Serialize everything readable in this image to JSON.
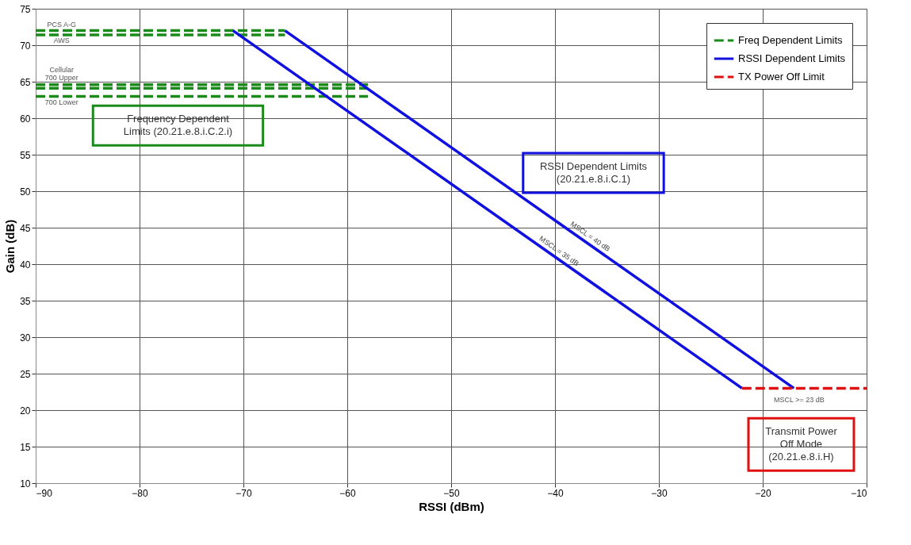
{
  "chart_data": {
    "type": "line",
    "xlabel": "RSSI (dBm)",
    "ylabel": "Gain (dB)",
    "xlim": [
      -90,
      -10
    ],
    "xticks": [
      -90,
      -80,
      -70,
      -60,
      -50,
      -40,
      -30,
      -20,
      -10
    ],
    "ylim": [
      10,
      75
    ],
    "yticks": [
      10,
      15,
      20,
      25,
      30,
      35,
      40,
      45,
      50,
      55,
      60,
      65,
      70,
      75
    ],
    "grid": true,
    "legend": "top right",
    "series": [
      {
        "name": "Freq Dependent Limits",
        "color": "#1a8a1a",
        "line_style": "dashed",
        "x": [
          -90,
          -66
        ],
        "values": [
          72.0,
          72.0
        ]
      },
      {
        "color": "#1a8a1a",
        "line_style": "dashed",
        "x": [
          -90,
          -66
        ],
        "values": [
          71.4,
          71.4
        ]
      },
      {
        "color": "#1a8a1a",
        "line_style": "dashed",
        "x": [
          -90,
          -58
        ],
        "values": [
          64.6,
          64.6
        ]
      },
      {
        "color": "#1a8a1a",
        "line_style": "dashed",
        "x": [
          -90,
          -58
        ],
        "values": [
          64.1,
          64.1
        ]
      },
      {
        "color": "#1a8a1a",
        "line_style": "dashed",
        "x": [
          -90,
          -58
        ],
        "values": [
          63.0,
          63.0
        ]
      },
      {
        "name": "RSSI Dependent Limits",
        "color": "#1010e0",
        "line_style": "solid",
        "x": [
          -66,
          -17
        ],
        "values": [
          72,
          23
        ]
      },
      {
        "color": "#1010e0",
        "line_style": "solid",
        "x": [
          -71,
          -22
        ],
        "values": [
          72,
          23
        ]
      },
      {
        "name": "TX Power Off Limit",
        "color": "#e01010",
        "line_style": "dashed",
        "x": [
          -22,
          -10
        ],
        "values": [
          23,
          23
        ]
      }
    ],
    "annotations": [
      "Frequency Dependent\nLimits (20.21.e.8.i.C.2.i)",
      "RSSI Dependent Limits\n(20.21.e.8.i.C.1)",
      "Transmit Power\nOff Mode\n(20.21.e.8.i.H)",
      {
        "text": "MSCL = 40 dB",
        "x": -37,
        "y": 43
      },
      {
        "text": "MSCL = 35 dB",
        "x": -40,
        "y": 41
      },
      "MSCL >= 23 dB",
      "PCS A-G",
      "AWS",
      "Cellular",
      "700 Upper",
      "700 Lower"
    ]
  }
}
